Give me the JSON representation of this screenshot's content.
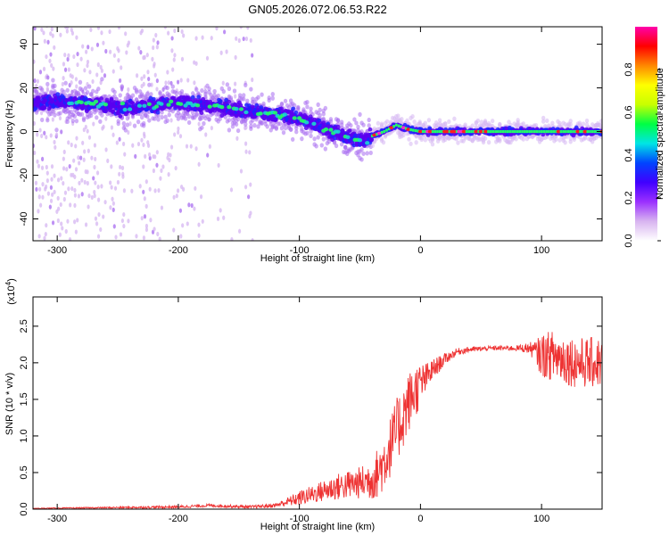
{
  "title": "GN05.2026.072.06.53.R22",
  "chart_data": [
    {
      "type": "heatmap",
      "name": "spectrogram",
      "xlabel": "Height of straight line (km)",
      "ylabel": "Frequency (Hz)",
      "xlim": [
        -320,
        150
      ],
      "ylim": [
        -50,
        48
      ],
      "xticks": [
        -300,
        -200,
        -100,
        0,
        100
      ],
      "xtick_labels": [
        "-300",
        "-200",
        "-100",
        "0",
        "100"
      ],
      "yticks": [
        -40,
        -20,
        0,
        20,
        40
      ],
      "ytick_labels": [
        "-40",
        "-20",
        "0",
        "20",
        "40"
      ],
      "colorbar": {
        "label": "Normalized spectral amplitude",
        "range": [
          0,
          1
        ],
        "ticks": [
          0.0,
          0.2,
          0.4,
          0.6,
          0.8
        ],
        "tick_labels": [
          "0.0",
          "0.2",
          "0.4",
          "0.6",
          "0.8"
        ],
        "colors": [
          "#ffffff",
          "#d8b4f0",
          "#9b30ff",
          "#4000ff",
          "#0044ff",
          "#00e5e5",
          "#00ff44",
          "#c8ff00",
          "#ffff00",
          "#ff8800",
          "#ff0000",
          "#ff00aa"
        ]
      },
      "ridge": {
        "x": [
          -320,
          -300,
          -280,
          -260,
          -240,
          -220,
          -200,
          -180,
          -160,
          -140,
          -120,
          -100,
          -80,
          -60,
          -45,
          -40,
          -30,
          -20,
          -10,
          0,
          20,
          50,
          100,
          150
        ],
        "y": [
          13,
          14,
          13,
          12,
          11,
          12,
          13,
          12,
          11,
          9,
          8,
          6,
          2,
          -3,
          -4,
          -2,
          0,
          3,
          1,
          0,
          0,
          0,
          0,
          0
        ]
      }
    },
    {
      "type": "line",
      "name": "snr",
      "xlabel": "Height of straight line (km)",
      "ylabel": "SNR (10 * v/v)",
      "multiplier": "(x10",
      "multiplier_exp": "4",
      "xlim": [
        -320,
        150
      ],
      "ylim": [
        0,
        2.9
      ],
      "xticks": [
        -300,
        -200,
        -100,
        0,
        100
      ],
      "xtick_labels": [
        "-300",
        "-200",
        "-100",
        "0",
        "100"
      ],
      "yticks": [
        0.0,
        0.5,
        1.0,
        1.5,
        2.0,
        2.5
      ],
      "ytick_labels": [
        "0.0",
        "0.5",
        "1.0",
        "1.5",
        "2.0",
        "2.5"
      ],
      "color": "#ee3333",
      "envelope": {
        "x": [
          -320,
          -260,
          -200,
          -175,
          -140,
          -120,
          -110,
          -100,
          -90,
          -80,
          -70,
          -60,
          -50,
          -45,
          -40,
          -35,
          -30,
          -25,
          -20,
          -15,
          -10,
          -5,
          0,
          5,
          10,
          20,
          30,
          40,
          60,
          80,
          90,
          95,
          100,
          110,
          120,
          130,
          140,
          150
        ],
        "mean": [
          0.01,
          0.02,
          0.03,
          0.05,
          0.03,
          0.05,
          0.1,
          0.15,
          0.2,
          0.25,
          0.3,
          0.33,
          0.36,
          0.38,
          0.42,
          0.5,
          0.65,
          0.85,
          1.05,
          1.25,
          1.45,
          1.6,
          1.7,
          1.8,
          1.9,
          2.05,
          2.15,
          2.18,
          2.2,
          2.2,
          2.2,
          2.15,
          2.1,
          2.1,
          2.05,
          2.0,
          2.0,
          2.0
        ],
        "noise": [
          0.005,
          0.01,
          0.02,
          0.02,
          0.02,
          0.03,
          0.06,
          0.1,
          0.12,
          0.15,
          0.18,
          0.2,
          0.22,
          0.25,
          0.3,
          0.35,
          0.4,
          0.42,
          0.45,
          0.45,
          0.42,
          0.38,
          0.3,
          0.2,
          0.15,
          0.08,
          0.05,
          0.04,
          0.03,
          0.04,
          0.08,
          0.15,
          0.3,
          0.35,
          0.35,
          0.35,
          0.35,
          0.35
        ]
      }
    }
  ]
}
